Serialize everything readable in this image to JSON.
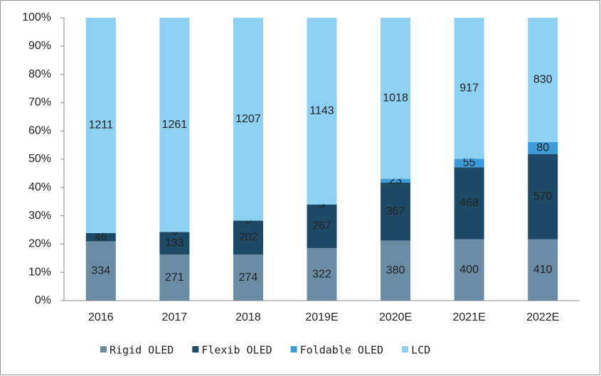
{
  "chart_data": {
    "type": "bar",
    "stacked": "percent",
    "categories": [
      "2016",
      "2017",
      "2018",
      "2019E",
      "2020E",
      "2021E",
      "2022E"
    ],
    "series": [
      {
        "name": "Rigid OLED",
        "color": "#6a8ca5",
        "values": [
          334,
          271,
          274,
          322,
          380,
          400,
          410
        ]
      },
      {
        "name": "Flexib OLED",
        "color": "#1d4a66",
        "values": [
          46,
          133,
          202,
          267,
          367,
          468,
          570
        ]
      },
      {
        "name": "Foldable OLED",
        "color": "#3b9bdb",
        "values": [
          null,
          0,
          0,
          3,
          23,
          55,
          80
        ]
      },
      {
        "name": "LCD",
        "color": "#8dd0f2",
        "values": [
          1211,
          1261,
          1207,
          1143,
          1018,
          917,
          830
        ]
      }
    ],
    "ylim": [
      0,
      100
    ],
    "yticks": [
      {
        "value": 0,
        "label": "0%"
      },
      {
        "value": 10,
        "label": "10%"
      },
      {
        "value": 20,
        "label": "20%"
      },
      {
        "value": 30,
        "label": "30%"
      },
      {
        "value": 40,
        "label": "40%"
      },
      {
        "value": 50,
        "label": "50%"
      },
      {
        "value": 60,
        "label": "60%"
      },
      {
        "value": 70,
        "label": "70%"
      },
      {
        "value": 80,
        "label": "80%"
      },
      {
        "value": 90,
        "label": "90%"
      },
      {
        "value": 100,
        "label": "100%"
      }
    ],
    "legend": "bottom"
  }
}
